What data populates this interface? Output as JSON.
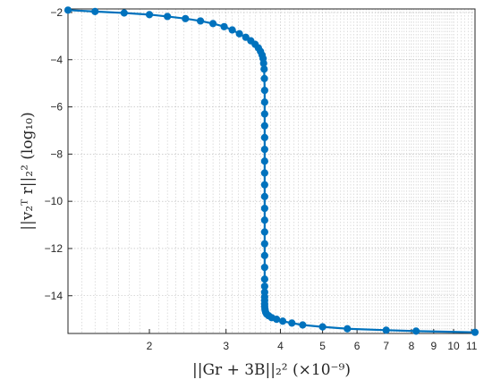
{
  "chart_data": {
    "type": "line",
    "xscale": "log",
    "xlabel": "||Gr + 3B||₂² (×10⁻⁹)",
    "ylabel": "||v₂ᵀ r||₂² (log₁₀)",
    "xlim": [
      1.3,
      11.2
    ],
    "ylim": [
      -15.6,
      -1.85
    ],
    "xticks": [
      2,
      3,
      4,
      5,
      6,
      7,
      8,
      9,
      10,
      11
    ],
    "xtick_labels": [
      "2",
      "3",
      "4",
      "5",
      "6",
      "7",
      "8",
      "9",
      "10",
      "11"
    ],
    "yticks": [
      -2,
      -4,
      -6,
      -8,
      -10,
      -12,
      -14
    ],
    "ytick_labels": [
      "−2",
      "−4",
      "−6",
      "−8",
      "−10",
      "−12",
      "−14"
    ],
    "grid": true,
    "series": [
      {
        "color": "#0072BD",
        "x": [
          1.3,
          1.5,
          1.75,
          2.0,
          2.2,
          2.42,
          2.62,
          2.8,
          2.97,
          3.1,
          3.22,
          3.33,
          3.42,
          3.5,
          3.56,
          3.6,
          3.63,
          3.65,
          3.66,
          3.67,
          3.675,
          3.68,
          3.68,
          3.68,
          3.68,
          3.68,
          3.68,
          3.68,
          3.68,
          3.68,
          3.68,
          3.68,
          3.68,
          3.68,
          3.68,
          3.68,
          3.68,
          3.68,
          3.68,
          3.68,
          3.68,
          3.68,
          3.68,
          3.68,
          3.685,
          3.69,
          3.7,
          3.72,
          3.76,
          3.82,
          3.92,
          4.05,
          4.25,
          4.5,
          5.0,
          5.7,
          7.0,
          8.2,
          11.2
        ],
        "y": [
          -1.9,
          -1.96,
          -2.02,
          -2.09,
          -2.17,
          -2.26,
          -2.36,
          -2.47,
          -2.6,
          -2.74,
          -2.9,
          -3.05,
          -3.2,
          -3.35,
          -3.5,
          -3.65,
          -3.8,
          -3.95,
          -4.15,
          -4.4,
          -4.8,
          -5.3,
          -5.8,
          -6.3,
          -6.8,
          -7.3,
          -7.8,
          -8.3,
          -8.8,
          -9.3,
          -9.8,
          -10.3,
          -10.8,
          -11.3,
          -11.8,
          -12.3,
          -12.8,
          -13.3,
          -13.6,
          -13.85,
          -14.05,
          -14.2,
          -14.35,
          -14.45,
          -14.55,
          -14.62,
          -14.7,
          -14.78,
          -14.85,
          -14.93,
          -15.0,
          -15.08,
          -15.16,
          -15.24,
          -15.32,
          -15.4,
          -15.46,
          -15.5,
          -15.55
        ]
      }
    ]
  }
}
